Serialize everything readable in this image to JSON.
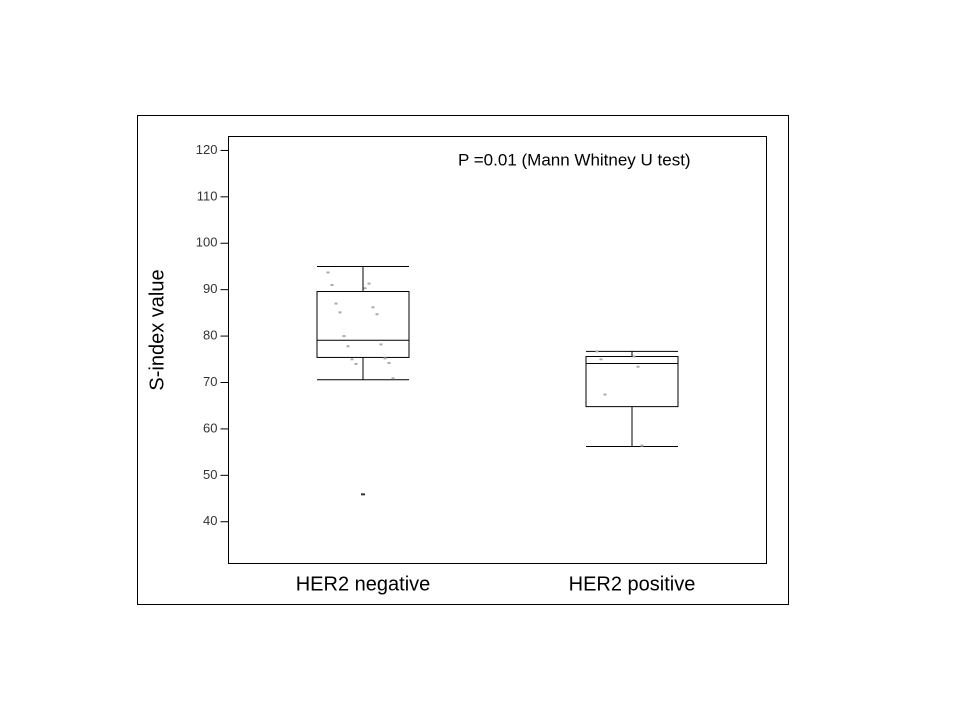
{
  "chart_data": {
    "type": "box",
    "y_label": "S-index value",
    "annotation": "P =0.01 (Mann Whitney U test)",
    "ylim": [
      31,
      123
    ],
    "yticks": [
      40,
      50,
      60,
      70,
      80,
      90,
      100,
      110,
      120
    ],
    "boxes": [
      {
        "category": "HER2 negative",
        "whisker_low": 70.6,
        "q1": 75.4,
        "median": 79.1,
        "q3": 89.6,
        "whisker_high": 95,
        "outliers": [
          45.9
        ],
        "points": [
          93.7,
          90.3,
          91,
          91.3,
          87,
          86.2,
          85.1,
          84.7,
          80,
          78.2,
          77.8,
          75.2,
          75,
          74.2,
          74,
          70.9
        ]
      },
      {
        "category": "HER2 positive",
        "whisker_low": 56.2,
        "q1": 64.8,
        "median": 74.1,
        "q3": 75.6,
        "whisker_high": 76.7,
        "outliers": [],
        "points": [
          76.7,
          75.6,
          75,
          73.4,
          67.4,
          56.4
        ]
      }
    ]
  }
}
